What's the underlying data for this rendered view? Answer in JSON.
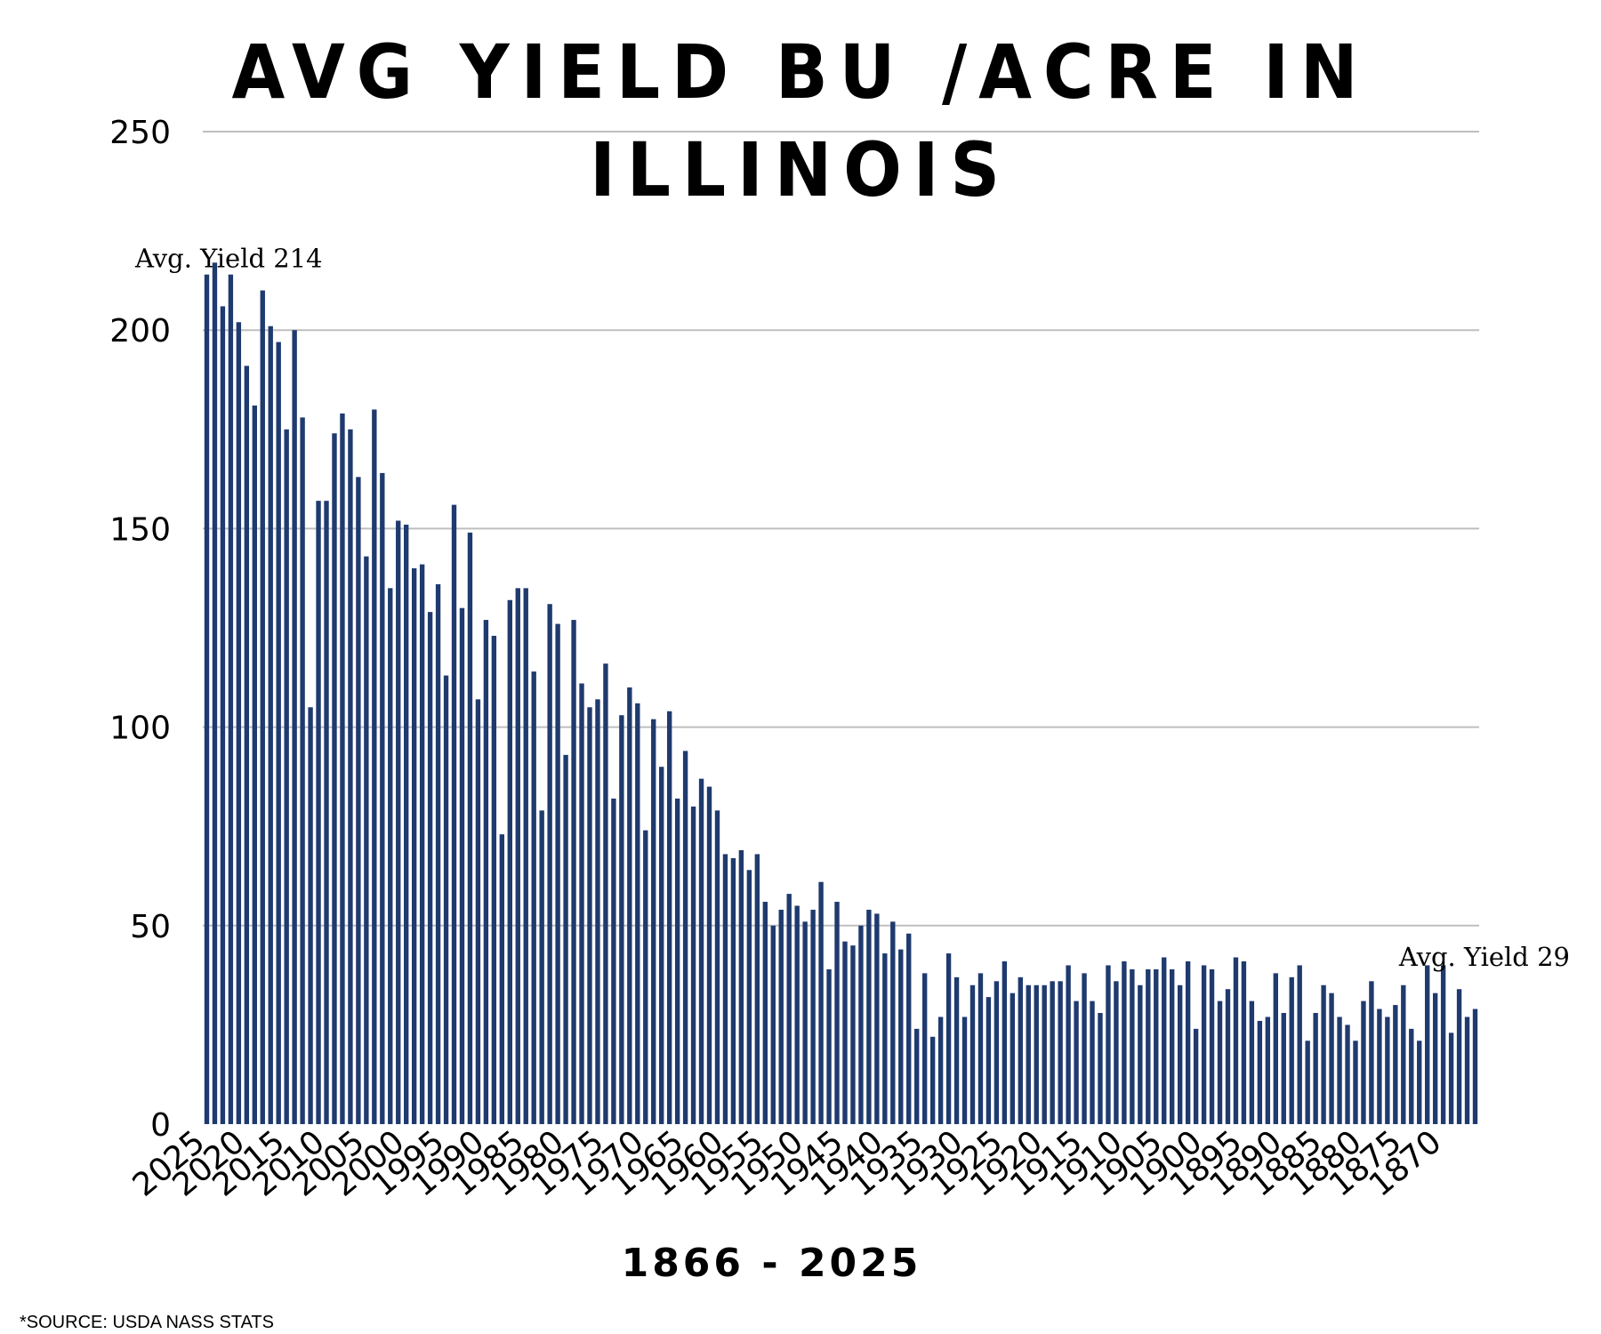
{
  "chart_data": {
    "type": "bar",
    "title": "AVG YIELD BU /ACRE IN ILLINOIS",
    "xlabel": "1866 - 2025",
    "ylabel": "",
    "ylim": [
      0,
      250
    ],
    "yticks": [
      0,
      50,
      100,
      150,
      200,
      250
    ],
    "grid": true,
    "bar_color": "#1f3a6e",
    "grid_color": "#bfbfbf",
    "x_order": "descending",
    "x_tick_labels": [
      "2025",
      "2020",
      "2015",
      "2010",
      "2005",
      "2000",
      "1995",
      "1990",
      "1985",
      "1980",
      "1975",
      "1970",
      "1965",
      "1960",
      "1955",
      "1950",
      "1945",
      "1940",
      "1935",
      "1930",
      "1925",
      "1920",
      "1915",
      "1910",
      "1905",
      "1900",
      "1895",
      "1890",
      "1885",
      "1880",
      "1875",
      "1870"
    ],
    "values": [
      214,
      217,
      206,
      214,
      202,
      191,
      181,
      210,
      201,
      197,
      175,
      200,
      178,
      105,
      157,
      157,
      174,
      179,
      175,
      163,
      143,
      180,
      164,
      135,
      152,
      151,
      140,
      141,
      129,
      136,
      113,
      156,
      130,
      149,
      107,
      127,
      123,
      73,
      132,
      135,
      135,
      114,
      79,
      131,
      126,
      93,
      127,
      111,
      105,
      107,
      116,
      82,
      103,
      110,
      106,
      74,
      102,
      90,
      104,
      82,
      94,
      80,
      87,
      85,
      79,
      68,
      67,
      69,
      64,
      68,
      56,
      50,
      54,
      58,
      55,
      51,
      54,
      61,
      39,
      56,
      46,
      45,
      50,
      54,
      53,
      43,
      51,
      44,
      48,
      24,
      38,
      22,
      27,
      43,
      37,
      27,
      35,
      38,
      32,
      36,
      41,
      33,
      37,
      35,
      35,
      35,
      36,
      36,
      40,
      31,
      38,
      31,
      28,
      40,
      36,
      41,
      39,
      35,
      39,
      39,
      42,
      39,
      35,
      41,
      24,
      40,
      39,
      31,
      34,
      42,
      41,
      31,
      26,
      27,
      38,
      28,
      37,
      40,
      21,
      28,
      35,
      33,
      27,
      25,
      21,
      31,
      36,
      29,
      27,
      30,
      35,
      24,
      21,
      40,
      33,
      40,
      23,
      34,
      27,
      29
    ],
    "annotations": [
      {
        "text": "Avg. Yield 214",
        "year": "2025",
        "value": 214
      },
      {
        "text": "Avg. Yield 29",
        "year": "1866",
        "value": 29
      }
    ]
  },
  "footer": {
    "source": "*SOURCE: USDA NASS STATS"
  }
}
